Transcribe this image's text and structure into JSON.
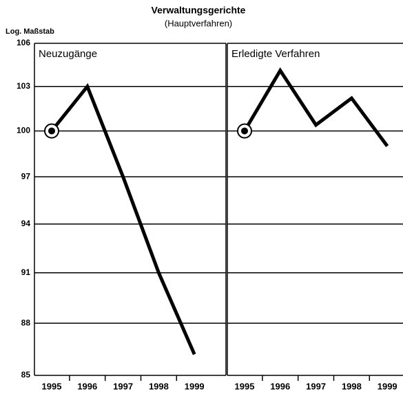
{
  "chart_data": [
    {
      "type": "line",
      "title": "Verwaltungsgerichte",
      "subtitle": "(Hauptverfahren)",
      "y_axis_label": "Log. Maßstab",
      "panel_title": "Neuzugänge",
      "categories": [
        "1995",
        "1996",
        "1997",
        "1998",
        "1999"
      ],
      "values": [
        100,
        103,
        97,
        91,
        86.2
      ],
      "color": "#000000",
      "log_scale": true,
      "ylim": [
        85,
        106
      ],
      "yticks": [
        85,
        88,
        91,
        94,
        97,
        100,
        103,
        106
      ],
      "grid": true,
      "show_tick_labels": true,
      "base_marker": true
    },
    {
      "type": "line",
      "panel_title": "Erledigte Verfahren",
      "categories": [
        "1995",
        "1996",
        "1997",
        "1998",
        "1999"
      ],
      "values": [
        100,
        104.1,
        100.4,
        102.2,
        99.0
      ],
      "color": "#000000",
      "log_scale": true,
      "ylim": [
        85,
        106
      ],
      "yticks": [
        85,
        88,
        91,
        94,
        97,
        100,
        103,
        106
      ],
      "grid": true,
      "show_tick_labels": false,
      "base_marker": true
    }
  ]
}
